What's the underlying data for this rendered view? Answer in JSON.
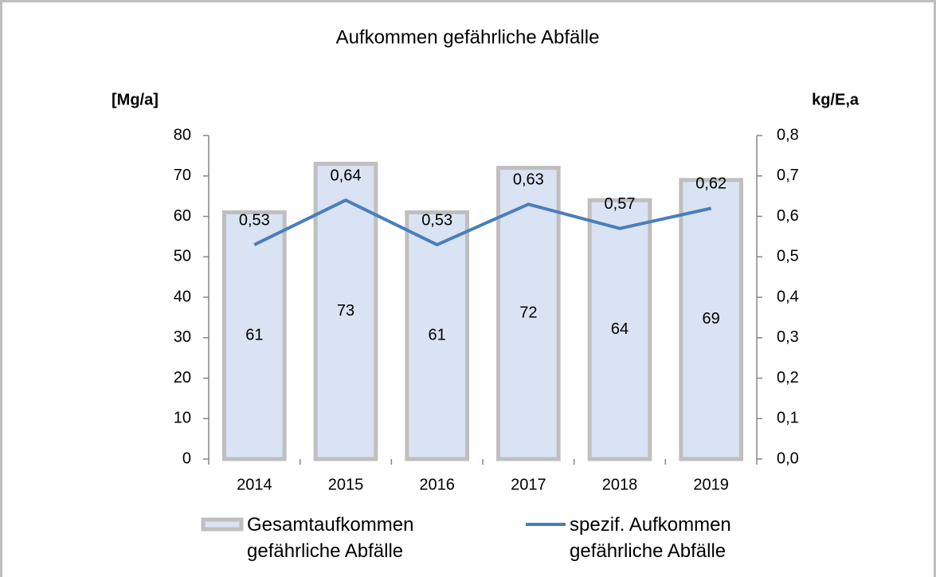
{
  "chart_data": {
    "type": "bar",
    "title": "Aufkommen gefährliche Abfälle",
    "y_label": "[Mg/a]",
    "y2_label": "kg/E,a",
    "categories": [
      "2014",
      "2015",
      "2016",
      "2017",
      "2018",
      "2019"
    ],
    "series": [
      {
        "name": "Gesamtaufkommen gefährliche Abfälle",
        "type": "bar",
        "color": "#dae3f3",
        "edge_color": "#bfbfbf",
        "values": [
          61,
          73,
          61,
          72,
          64,
          69
        ]
      },
      {
        "name": "spezif. Aufkommen gefährliche Abfälle",
        "type": "line",
        "axis": "y2",
        "color": "#4a7ebb",
        "values": [
          0.53,
          0.64,
          0.53,
          0.63,
          0.57,
          0.62
        ],
        "value_labels": [
          "0,53",
          "0,64",
          "0,53",
          "0,63",
          "0,57",
          "0,62"
        ]
      }
    ],
    "ylim": [
      0,
      80
    ],
    "yticks": [
      0,
      10,
      20,
      30,
      40,
      50,
      60,
      70,
      80
    ],
    "y2lim": [
      0,
      0.8
    ],
    "y2ticks": [
      {
        "value": 0,
        "label": "0,0"
      },
      {
        "value": 0.1,
        "label": "0,1"
      },
      {
        "value": 0.2,
        "label": "0,2"
      },
      {
        "value": 0.3,
        "label": "0,3"
      },
      {
        "value": 0.4,
        "label": "0,4"
      },
      {
        "value": 0.5,
        "label": "0,5"
      },
      {
        "value": 0.6,
        "label": "0,6"
      },
      {
        "value": 0.7,
        "label": "0,7"
      },
      {
        "value": 0.8,
        "label": "0,8"
      }
    ],
    "grid": false,
    "legend": "bottom"
  }
}
